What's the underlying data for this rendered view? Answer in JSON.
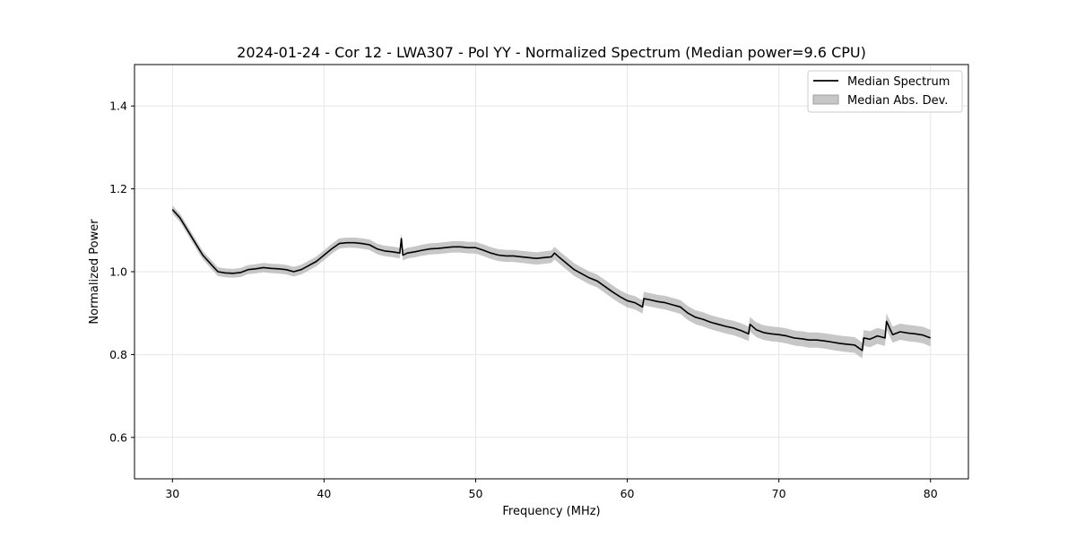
{
  "chart_data": {
    "type": "line",
    "title": "2024-01-24 - Cor 12 - LWA307 - Pol YY - Normalized Spectrum (Median power=9.6 CPU)",
    "xlabel": "Frequency (MHz)",
    "ylabel": "Normalized Power",
    "xlim": [
      27.5,
      82.5
    ],
    "ylim": [
      0.5,
      1.5
    ],
    "xticks": [
      30,
      40,
      50,
      60,
      70,
      80
    ],
    "yticks": [
      0.6,
      0.8,
      1.0,
      1.2,
      1.4
    ],
    "xtick_labels": [
      "30",
      "40",
      "50",
      "60",
      "70",
      "80"
    ],
    "ytick_labels": [
      "0.6",
      "0.8",
      "1.0",
      "1.2",
      "1.4"
    ],
    "grid": true,
    "legend_position": "top-right",
    "legend": {
      "line_label": "Median Spectrum",
      "band_label": "Median Abs. Dev."
    },
    "colors": {
      "line": "#000000",
      "band": "#b4b4b4",
      "grid": "#e6e6e6"
    },
    "series": [
      {
        "name": "Median Spectrum",
        "x": [
          30,
          30.5,
          31,
          31.5,
          32,
          32.5,
          33,
          33.5,
          34,
          34.5,
          35,
          35.5,
          36,
          36.5,
          37,
          37.5,
          38,
          38.5,
          39,
          39.5,
          40,
          40.5,
          41,
          41.5,
          42,
          42.5,
          43,
          43.5,
          44,
          44.5,
          45,
          45.1,
          45.2,
          45.5,
          46,
          46.5,
          47,
          47.5,
          48,
          48.5,
          49,
          49.5,
          50,
          50.5,
          51,
          51.5,
          52,
          52.5,
          53,
          53.5,
          54,
          54.5,
          55,
          55.2,
          55.5,
          56,
          56.5,
          57,
          57.5,
          58,
          58.5,
          59,
          59.5,
          60,
          60.5,
          61,
          61.1,
          61.5,
          62,
          62.5,
          63,
          63.5,
          64,
          64.5,
          65,
          65.5,
          66,
          66.5,
          67,
          67.5,
          68,
          68.1,
          68.5,
          69,
          69.5,
          70,
          70.5,
          71,
          71.5,
          72,
          72.5,
          73,
          73.5,
          74,
          74.5,
          75,
          75.5,
          75.6,
          76,
          76.5,
          77,
          77.1,
          77.5,
          78,
          78.5,
          79,
          79.5,
          80
        ],
        "y": [
          1.15,
          1.13,
          1.1,
          1.07,
          1.04,
          1.02,
          1.0,
          0.997,
          0.996,
          0.998,
          1.005,
          1.007,
          1.01,
          1.008,
          1.007,
          1.005,
          1.0,
          1.005,
          1.015,
          1.025,
          1.04,
          1.055,
          1.068,
          1.07,
          1.07,
          1.068,
          1.065,
          1.055,
          1.05,
          1.048,
          1.045,
          1.08,
          1.04,
          1.045,
          1.048,
          1.052,
          1.055,
          1.056,
          1.058,
          1.06,
          1.06,
          1.058,
          1.058,
          1.052,
          1.045,
          1.04,
          1.038,
          1.038,
          1.036,
          1.034,
          1.032,
          1.034,
          1.036,
          1.045,
          1.035,
          1.02,
          1.005,
          0.995,
          0.985,
          0.978,
          0.965,
          0.952,
          0.94,
          0.93,
          0.925,
          0.915,
          0.935,
          0.932,
          0.928,
          0.925,
          0.92,
          0.915,
          0.9,
          0.89,
          0.885,
          0.878,
          0.873,
          0.868,
          0.864,
          0.858,
          0.85,
          0.873,
          0.86,
          0.853,
          0.85,
          0.848,
          0.845,
          0.84,
          0.838,
          0.835,
          0.835,
          0.833,
          0.83,
          0.827,
          0.825,
          0.823,
          0.81,
          0.84,
          0.837,
          0.845,
          0.84,
          0.88,
          0.848,
          0.855,
          0.852,
          0.85,
          0.847,
          0.84
        ]
      }
    ],
    "mad_band": {
      "name": "Median Abs. Dev.",
      "half_width_start": 0.01,
      "half_width_end": 0.02
    }
  }
}
